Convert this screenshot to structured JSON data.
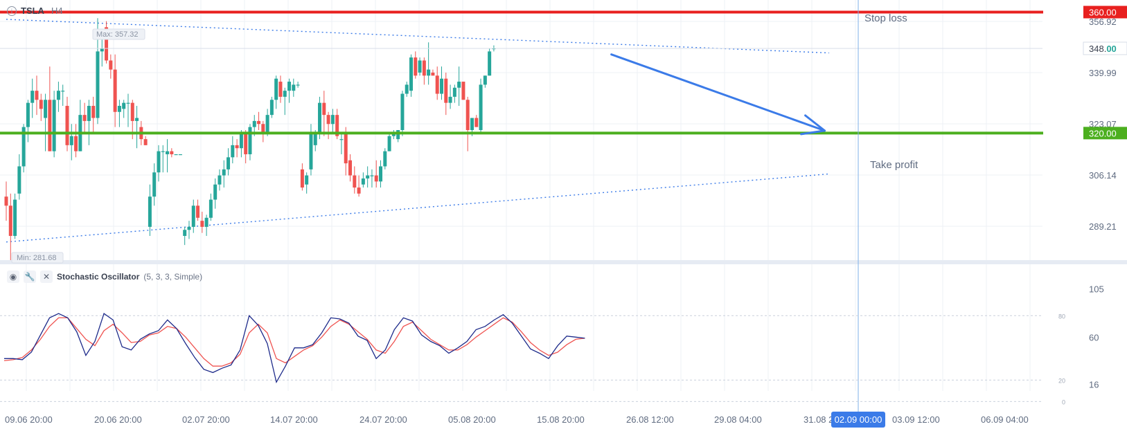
{
  "header": {
    "symbol": "TSLA",
    "timeframe": "H4",
    "info_icon": "info-icon"
  },
  "indicator": {
    "name": "Stochastic Oscillator",
    "params": "(5, 3, 3, Simple)",
    "icons": [
      "eye-icon",
      "wrench-icon",
      "close-icon"
    ]
  },
  "annotations": {
    "stop_loss_label": "Stop loss",
    "take_profit_label": "Take profit",
    "max_label": "Max: 357.32",
    "min_label": "Min: 281.68"
  },
  "price_axis": {
    "ticks": [
      "356.92",
      "339.99",
      "323.07",
      "306.14",
      "289.21"
    ],
    "current_price_main": "348.",
    "current_price_frac": "00",
    "stop_loss_tag": "360.00",
    "take_profit_tag": "320.00"
  },
  "osc_axis": {
    "ticks": [
      "105",
      "60",
      "16"
    ],
    "levels": [
      "80",
      "20",
      "0"
    ]
  },
  "time_axis": {
    "labels": [
      "09.06 20:00",
      "20.06 20:00",
      "02.07 20:00",
      "14.07 20:00",
      "24.07 20:00",
      "05.08 20:00",
      "15.08 20:00",
      "26.08 12:00",
      "29.08 04:00",
      "31.08 2",
      "03.09 12:00",
      "06.09 04:00"
    ],
    "crosshair_label": "02.09 00:00"
  },
  "colors": {
    "up": "#26a69a",
    "down": "#ef5350",
    "stop_loss": "#e8201f",
    "take_profit": "#4caf1f",
    "arrow": "#3b7be8",
    "trend": "#3b7be8",
    "k_line": "#1d2a8a",
    "d_line": "#ef5350",
    "crosshair": "#7fb0e8",
    "price_tag_bg": "#ffffff"
  },
  "chart_data": {
    "type": "candlestick",
    "symbol": "TSLA",
    "timeframe": "H4",
    "price_range": [
      278,
      364
    ],
    "levels": {
      "stop_loss": 360.0,
      "take_profit": 320.0,
      "last": 348.0
    },
    "extremes": {
      "max": 357.32,
      "min": 281.68
    },
    "candles": [
      {
        "o": 299,
        "h": 304,
        "l": 291,
        "c": 296
      },
      {
        "o": 296,
        "h": 300,
        "l": 278,
        "c": 286
      },
      {
        "o": 286,
        "h": 300,
        "l": 285,
        "c": 298
      },
      {
        "o": 300,
        "h": 313,
        "l": 298,
        "c": 309
      },
      {
        "o": 309,
        "h": 323,
        "l": 307,
        "c": 322
      },
      {
        "o": 322,
        "h": 331,
        "l": 317,
        "c": 330
      },
      {
        "o": 330,
        "h": 338,
        "l": 325,
        "c": 334
      },
      {
        "o": 334,
        "h": 339,
        "l": 326,
        "c": 331
      },
      {
        "o": 331,
        "h": 333,
        "l": 324,
        "c": 328
      },
      {
        "o": 325,
        "h": 333,
        "l": 314,
        "c": 331
      },
      {
        "o": 331,
        "h": 342,
        "l": 314,
        "c": 314
      },
      {
        "o": 314,
        "h": 334,
        "l": 312,
        "c": 331
      },
      {
        "o": 331,
        "h": 337,
        "l": 327,
        "c": 334
      },
      {
        "o": 334,
        "h": 336,
        "l": 329,
        "c": 334
      },
      {
        "o": 329,
        "h": 332,
        "l": 314,
        "c": 316
      },
      {
        "o": 316,
        "h": 323,
        "l": 311,
        "c": 319
      },
      {
        "o": 319,
        "h": 323,
        "l": 312,
        "c": 314
      },
      {
        "o": 314,
        "h": 331,
        "l": 314,
        "c": 326
      },
      {
        "o": 326,
        "h": 330,
        "l": 320,
        "c": 324
      },
      {
        "o": 324,
        "h": 331,
        "l": 316,
        "c": 329
      },
      {
        "o": 329,
        "h": 332,
        "l": 320,
        "c": 325
      },
      {
        "o": 325,
        "h": 358,
        "l": 323,
        "c": 347
      },
      {
        "o": 347,
        "h": 352,
        "l": 342,
        "c": 348
      },
      {
        "o": 355,
        "h": 357,
        "l": 343,
        "c": 344
      },
      {
        "o": 344,
        "h": 346,
        "l": 338,
        "c": 341
      },
      {
        "o": 341,
        "h": 346,
        "l": 322,
        "c": 327
      },
      {
        "o": 327,
        "h": 331,
        "l": 322,
        "c": 329
      },
      {
        "o": 328,
        "h": 331,
        "l": 325,
        "c": 330
      },
      {
        "o": 330,
        "h": 333,
        "l": 322,
        "c": 330
      },
      {
        "o": 330,
        "h": 331,
        "l": 318,
        "c": 324
      },
      {
        "o": 324,
        "h": 329,
        "l": 315,
        "c": 325
      },
      {
        "o": 322,
        "h": 324,
        "l": 316,
        "c": 318
      },
      {
        "o": 318,
        "h": 319,
        "l": 316,
        "c": 316
      },
      {
        "o": 289,
        "h": 303,
        "l": 286,
        "c": 299
      },
      {
        "o": 299,
        "h": 310,
        "l": 296,
        "c": 307
      },
      {
        "o": 307,
        "h": 316,
        "l": 304,
        "c": 314
      },
      {
        "o": 314,
        "h": 316,
        "l": 307,
        "c": 314
      },
      {
        "o": 313,
        "h": 318,
        "l": 307,
        "c": 314
      },
      {
        "o": 314,
        "h": 315,
        "l": 312,
        "c": 313
      },
      {
        "o": 313,
        "h": 313,
        "l": 313,
        "c": 313
      },
      {
        "o": 313,
        "h": 313,
        "l": 313,
        "c": 313
      },
      {
        "o": 286,
        "h": 289,
        "l": 283,
        "c": 288
      },
      {
        "o": 288,
        "h": 291,
        "l": 285,
        "c": 289
      },
      {
        "o": 289,
        "h": 298,
        "l": 287,
        "c": 296
      },
      {
        "o": 296,
        "h": 298,
        "l": 291,
        "c": 292
      },
      {
        "o": 291,
        "h": 294,
        "l": 287,
        "c": 289
      },
      {
        "o": 289,
        "h": 293,
        "l": 286,
        "c": 292
      },
      {
        "o": 292,
        "h": 300,
        "l": 291,
        "c": 298
      },
      {
        "o": 298,
        "h": 305,
        "l": 295,
        "c": 303
      },
      {
        "o": 303,
        "h": 308,
        "l": 301,
        "c": 306
      },
      {
        "o": 306,
        "h": 311,
        "l": 302,
        "c": 308
      },
      {
        "o": 308,
        "h": 315,
        "l": 306,
        "c": 312
      },
      {
        "o": 312,
        "h": 319,
        "l": 310,
        "c": 316
      },
      {
        "o": 316,
        "h": 318,
        "l": 312,
        "c": 315
      },
      {
        "o": 315,
        "h": 321,
        "l": 312,
        "c": 320
      },
      {
        "o": 320,
        "h": 321,
        "l": 310,
        "c": 313
      },
      {
        "o": 313,
        "h": 323,
        "l": 311,
        "c": 322
      },
      {
        "o": 322,
        "h": 326,
        "l": 319,
        "c": 324
      },
      {
        "o": 324,
        "h": 327,
        "l": 321,
        "c": 323
      },
      {
        "o": 323,
        "h": 324,
        "l": 317,
        "c": 320
      },
      {
        "o": 320,
        "h": 328,
        "l": 319,
        "c": 326
      },
      {
        "o": 326,
        "h": 332,
        "l": 325,
        "c": 331
      },
      {
        "o": 331,
        "h": 339,
        "l": 328,
        "c": 338
      },
      {
        "o": 337,
        "h": 339,
        "l": 330,
        "c": 332
      },
      {
        "o": 332,
        "h": 335,
        "l": 326,
        "c": 334
      },
      {
        "o": 334,
        "h": 338,
        "l": 330,
        "c": 337
      },
      {
        "o": 334,
        "h": 338,
        "l": 332,
        "c": 336
      },
      {
        "o": 336,
        "h": 337,
        "l": 335,
        "c": 336
      },
      {
        "o": 308,
        "h": 310,
        "l": 301,
        "c": 302
      },
      {
        "o": 303,
        "h": 307,
        "l": 300,
        "c": 306
      },
      {
        "o": 308,
        "h": 323,
        "l": 306,
        "c": 320
      },
      {
        "o": 316,
        "h": 321,
        "l": 314,
        "c": 320
      },
      {
        "o": 320,
        "h": 332,
        "l": 318,
        "c": 330
      },
      {
        "o": 330,
        "h": 334,
        "l": 319,
        "c": 326
      },
      {
        "o": 326,
        "h": 327,
        "l": 318,
        "c": 323
      },
      {
        "o": 323,
        "h": 328,
        "l": 320,
        "c": 326
      },
      {
        "o": 326,
        "h": 328,
        "l": 318,
        "c": 319
      },
      {
        "o": 318,
        "h": 320,
        "l": 313,
        "c": 318
      },
      {
        "o": 320,
        "h": 322,
        "l": 306,
        "c": 310
      },
      {
        "o": 311,
        "h": 313,
        "l": 304,
        "c": 306
      },
      {
        "o": 306,
        "h": 309,
        "l": 300,
        "c": 302
      },
      {
        "o": 302,
        "h": 306,
        "l": 299,
        "c": 300
      },
      {
        "o": 303,
        "h": 307,
        "l": 302,
        "c": 305
      },
      {
        "o": 305,
        "h": 309,
        "l": 302,
        "c": 306
      },
      {
        "o": 306,
        "h": 308,
        "l": 302,
        "c": 306
      },
      {
        "o": 306,
        "h": 311,
        "l": 302,
        "c": 304
      },
      {
        "o": 304,
        "h": 311,
        "l": 302,
        "c": 309
      },
      {
        "o": 309,
        "h": 315,
        "l": 308,
        "c": 314
      },
      {
        "o": 314,
        "h": 320,
        "l": 314,
        "c": 319
      },
      {
        "o": 319,
        "h": 321,
        "l": 318,
        "c": 320
      },
      {
        "o": 318,
        "h": 321,
        "l": 317,
        "c": 321
      },
      {
        "o": 321,
        "h": 334,
        "l": 319,
        "c": 333
      },
      {
        "o": 333,
        "h": 337,
        "l": 332,
        "c": 336
      },
      {
        "o": 334,
        "h": 346,
        "l": 332,
        "c": 345
      },
      {
        "o": 345,
        "h": 347,
        "l": 338,
        "c": 339
      },
      {
        "o": 340,
        "h": 345,
        "l": 339,
        "c": 344
      },
      {
        "o": 344,
        "h": 345,
        "l": 336,
        "c": 339
      },
      {
        "o": 339,
        "h": 350,
        "l": 336,
        "c": 341
      },
      {
        "o": 340,
        "h": 341,
        "l": 339,
        "c": 339
      },
      {
        "o": 339,
        "h": 342,
        "l": 331,
        "c": 333
      },
      {
        "o": 333,
        "h": 342,
        "l": 331,
        "c": 338
      },
      {
        "o": 338,
        "h": 340,
        "l": 326,
        "c": 330
      },
      {
        "o": 330,
        "h": 336,
        "l": 328,
        "c": 332
      },
      {
        "o": 332,
        "h": 336,
        "l": 330,
        "c": 335
      },
      {
        "o": 335,
        "h": 342,
        "l": 329,
        "c": 337
      },
      {
        "o": 337,
        "h": 337,
        "l": 331,
        "c": 331
      },
      {
        "o": 331,
        "h": 332,
        "l": 314,
        "c": 321
      },
      {
        "o": 321,
        "h": 325,
        "l": 319,
        "c": 325
      },
      {
        "o": 325,
        "h": 326,
        "l": 322,
        "c": 322
      },
      {
        "o": 321,
        "h": 338,
        "l": 320,
        "c": 336
      },
      {
        "o": 336,
        "h": 339,
        "l": 335,
        "c": 339
      },
      {
        "o": 339,
        "h": 348,
        "l": 339,
        "c": 347
      },
      {
        "o": 348,
        "h": 349,
        "l": 347,
        "c": 348
      }
    ],
    "trendlines": [
      {
        "from": {
          "x": 0,
          "y": 357.6
        },
        "to": {
          "x": 189,
          "y": 346.5
        },
        "style": "dotted"
      },
      {
        "from": {
          "x": 0,
          "y": 284
        },
        "to": {
          "x": 189,
          "y": 306.5
        },
        "style": "dotted"
      }
    ],
    "forecast_arrow": {
      "from": {
        "x": 139,
        "y": 346
      },
      "to": {
        "x": 188,
        "y": 320.8
      }
    },
    "stochastic": {
      "k": [
        40,
        40,
        39,
        46,
        62,
        78,
        82,
        78,
        65,
        43,
        56,
        82,
        76,
        51,
        48,
        58,
        63,
        66,
        76,
        68,
        54,
        41,
        30,
        27,
        31,
        34,
        48,
        80,
        71,
        54,
        18,
        33,
        50,
        50,
        53,
        64,
        78,
        77,
        73,
        61,
        57,
        40,
        48,
        67,
        78,
        75,
        62,
        56,
        52,
        45,
        50,
        56,
        67,
        70,
        76,
        81,
        73,
        61,
        49,
        45,
        40,
        52,
        61,
        60,
        59
      ],
      "d": [
        38,
        39,
        41,
        48,
        58,
        70,
        78,
        78,
        68,
        58,
        52,
        66,
        72,
        64,
        55,
        56,
        62,
        64,
        70,
        68,
        60,
        50,
        40,
        33,
        33,
        36,
        44,
        64,
        72,
        64,
        40,
        36,
        42,
        48,
        52,
        60,
        70,
        76,
        72,
        65,
        58,
        48,
        45,
        56,
        70,
        74,
        66,
        58,
        53,
        48,
        48,
        53,
        60,
        66,
        72,
        78,
        74,
        65,
        55,
        48,
        43,
        46,
        53,
        58,
        59
      ],
      "overbought": 80,
      "oversold": 20,
      "range": [
        -3,
        106
      ]
    }
  }
}
